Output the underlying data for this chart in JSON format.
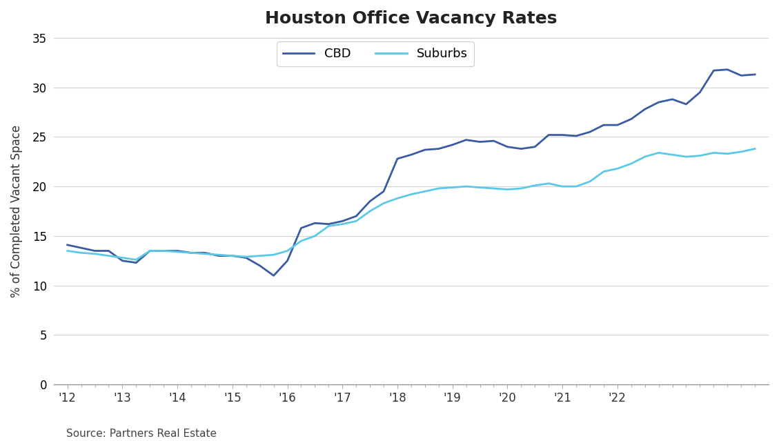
{
  "title": "Houston Office Vacancy Rates",
  "ylabel": "% of Completed Vacant Space",
  "source": "Source: Partners Real Estate",
  "ylim": [
    0,
    35
  ],
  "yticks": [
    0,
    5,
    10,
    15,
    20,
    25,
    30,
    35
  ],
  "cbd_color": "#3A5BA0",
  "suburbs_color": "#5BC8E8",
  "cbd_label": "CBD",
  "suburbs_label": "Suburbs",
  "line_width": 2.0,
  "background_color": "#FFFFFF",
  "x_labels": [
    "'12",
    "'13",
    "'14",
    "'15",
    "'16",
    "'17",
    "'18",
    "'19",
    "'20",
    "'21",
    "'22"
  ],
  "cbd_data": [
    14.1,
    13.8,
    13.5,
    13.5,
    12.5,
    12.3,
    13.5,
    13.5,
    13.5,
    13.3,
    13.3,
    13.0,
    13.0,
    12.8,
    12.0,
    11.0,
    12.5,
    15.8,
    16.3,
    16.2,
    16.5,
    17.0,
    18.5,
    19.5,
    22.8,
    23.2,
    23.7,
    23.8,
    24.2,
    24.7,
    24.5,
    24.6,
    24.0,
    23.8,
    24.0,
    25.2,
    25.2,
    25.1,
    25.5,
    26.2,
    26.2,
    26.8,
    27.8,
    28.5,
    28.8,
    28.3,
    29.5,
    31.7,
    31.8,
    31.2,
    31.3
  ],
  "suburbs_data": [
    13.5,
    13.3,
    13.2,
    13.0,
    12.8,
    12.6,
    13.5,
    13.5,
    13.4,
    13.3,
    13.2,
    13.1,
    13.0,
    12.9,
    13.0,
    13.1,
    13.5,
    14.5,
    15.0,
    16.0,
    16.2,
    16.5,
    17.5,
    18.3,
    18.8,
    19.2,
    19.5,
    19.8,
    19.9,
    20.0,
    19.9,
    19.8,
    19.7,
    19.8,
    20.1,
    20.3,
    20.0,
    20.0,
    20.5,
    21.5,
    21.8,
    22.3,
    23.0,
    23.4,
    23.2,
    23.0,
    23.1,
    23.4,
    23.3,
    23.5,
    23.8
  ],
  "n_quarters": 51
}
